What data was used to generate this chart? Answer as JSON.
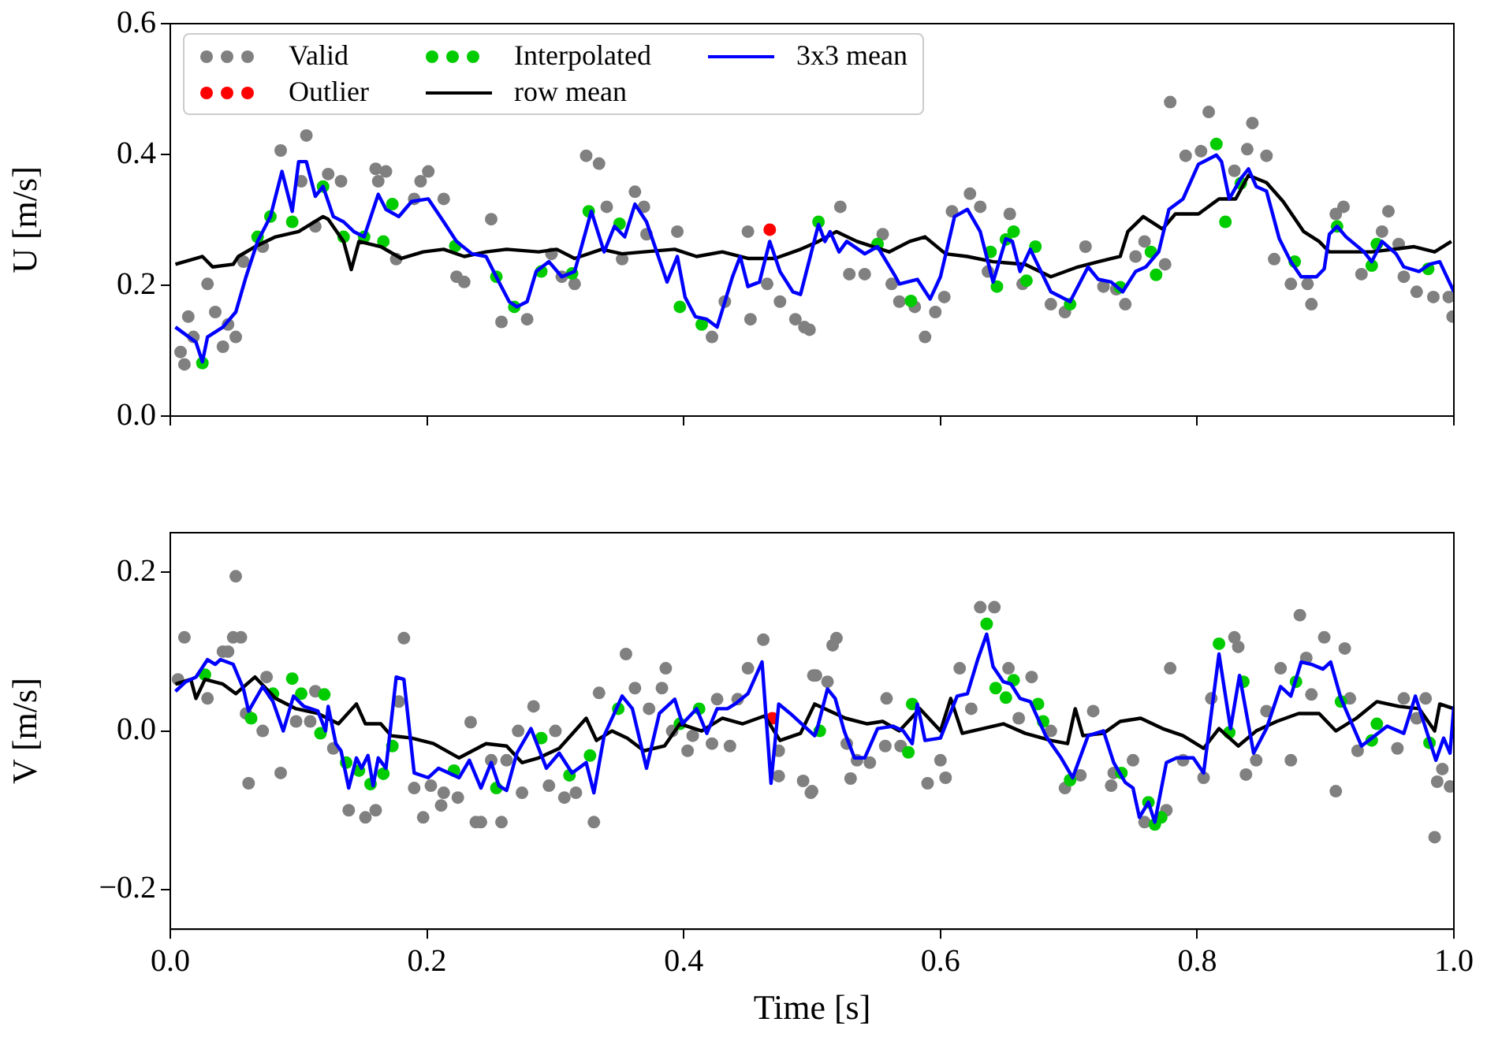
{
  "chart_data": [
    {
      "type": "line",
      "ylabel": "U [m/s]",
      "xlim": [
        0,
        1
      ],
      "xticks": [
        {
          "value": 0,
          "label": null
        },
        {
          "value": 0.2,
          "label": null
        },
        {
          "value": 0.4,
          "label": null
        },
        {
          "value": 0.6,
          "label": null
        },
        {
          "value": 0.8,
          "label": null
        },
        {
          "value": 1,
          "label": null
        }
      ],
      "ylim": [
        0,
        0.6
      ],
      "yticks": [
        {
          "value": 0,
          "label": "0.0"
        },
        {
          "value": 0.2,
          "label": "0.2"
        },
        {
          "value": 0.4,
          "label": "0.4"
        },
        {
          "value": 0.6,
          "label": "0.6"
        }
      ],
      "tick_labels": "y",
      "legend": "top left",
      "series": [
        {
          "name": "Valid",
          "type": "scatter",
          "marker": "circle",
          "color": "#808080",
          "x": [
            0.008,
            0.011,
            0.014,
            0.018,
            0.029,
            0.035,
            0.041,
            0.045,
            0.051,
            0.057,
            0.072,
            0.086,
            0.102,
            0.106,
            0.113,
            0.123,
            0.133,
            0.16,
            0.162,
            0.168,
            0.176,
            0.19,
            0.195,
            0.201,
            0.213,
            0.223,
            0.229,
            0.25,
            0.258,
            0.278,
            0.297,
            0.305,
            0.315,
            0.324,
            0.334,
            0.34,
            0.352,
            0.362,
            0.369,
            0.371,
            0.395,
            0.422,
            0.432,
            0.45,
            0.452,
            0.465,
            0.475,
            0.487,
            0.494,
            0.498,
            0.522,
            0.529,
            0.541,
            0.555,
            0.562,
            0.568,
            0.58,
            0.588,
            0.596,
            0.603,
            0.609,
            0.623,
            0.631,
            0.637,
            0.654,
            0.664,
            0.686,
            0.697,
            0.713,
            0.727,
            0.737,
            0.744,
            0.752,
            0.759,
            0.775,
            0.779,
            0.791,
            0.803,
            0.809,
            0.829,
            0.839,
            0.843,
            0.854,
            0.86,
            0.873,
            0.886,
            0.889,
            0.908,
            0.914,
            0.928,
            0.944,
            0.949,
            0.957,
            0.961,
            0.971,
            0.984,
            0.996,
            0.999
          ],
          "values": [
            0.098,
            0.079,
            0.152,
            0.121,
            0.202,
            0.159,
            0.106,
            0.14,
            0.121,
            0.236,
            0.259,
            0.406,
            0.359,
            0.429,
            0.29,
            0.37,
            0.359,
            0.378,
            0.359,
            0.374,
            0.24,
            0.332,
            0.359,
            0.374,
            0.332,
            0.213,
            0.205,
            0.301,
            0.144,
            0.148,
            0.248,
            0.213,
            0.202,
            0.398,
            0.386,
            0.32,
            0.24,
            0.343,
            0.32,
            0.278,
            0.282,
            0.121,
            0.175,
            0.282,
            0.148,
            0.202,
            0.175,
            0.148,
            0.136,
            0.132,
            0.32,
            0.217,
            0.217,
            0.278,
            0.202,
            0.175,
            0.167,
            0.121,
            0.159,
            0.182,
            0.313,
            0.34,
            0.32,
            0.221,
            0.309,
            0.202,
            0.171,
            0.159,
            0.259,
            0.198,
            0.194,
            0.171,
            0.244,
            0.267,
            0.232,
            0.48,
            0.398,
            0.405,
            0.465,
            0.375,
            0.408,
            0.448,
            0.398,
            0.24,
            0.202,
            0.202,
            0.171,
            0.309,
            0.32,
            0.217,
            0.282,
            0.313,
            0.263,
            0.213,
            0.19,
            0.182,
            0.182,
            0.152
          ]
        },
        {
          "name": "Outlier",
          "type": "scatter",
          "marker": "circle",
          "color": "#ff0000",
          "x": [
            0.467
          ],
          "values": [
            0.285
          ]
        },
        {
          "name": "Interpolated",
          "type": "scatter",
          "marker": "circle",
          "color": "#00cc00",
          "x": [
            0.025,
            0.068,
            0.078,
            0.095,
            0.119,
            0.135,
            0.151,
            0.166,
            0.173,
            0.222,
            0.254,
            0.268,
            0.289,
            0.313,
            0.326,
            0.35,
            0.397,
            0.414,
            0.505,
            0.551,
            0.577,
            0.639,
            0.644,
            0.651,
            0.657,
            0.667,
            0.674,
            0.701,
            0.74,
            0.764,
            0.768,
            0.815,
            0.822,
            0.834,
            0.876,
            0.909,
            0.936,
            0.94,
            0.98
          ],
          "values": [
            0.081,
            0.274,
            0.305,
            0.297,
            0.351,
            0.274,
            0.274,
            0.267,
            0.324,
            0.26,
            0.213,
            0.167,
            0.221,
            0.218,
            0.313,
            0.294,
            0.167,
            0.14,
            0.297,
            0.263,
            0.176,
            0.251,
            0.198,
            0.27,
            0.282,
            0.207,
            0.259,
            0.171,
            0.197,
            0.251,
            0.216,
            0.416,
            0.297,
            0.356,
            0.236,
            0.29,
            0.23,
            0.263,
            0.225
          ]
        },
        {
          "name": "row mean",
          "type": "line",
          "marker": "none",
          "line_style": "solid",
          "color": "#000000",
          "x": [
            0.004,
            0.025,
            0.033,
            0.049,
            0.053,
            0.066,
            0.082,
            0.1,
            0.119,
            0.123,
            0.135,
            0.141,
            0.147,
            0.164,
            0.18,
            0.197,
            0.213,
            0.229,
            0.246,
            0.262,
            0.287,
            0.301,
            0.315,
            0.336,
            0.352,
            0.369,
            0.393,
            0.41,
            0.43,
            0.45,
            0.471,
            0.491,
            0.505,
            0.519,
            0.535,
            0.56,
            0.576,
            0.588,
            0.604,
            0.621,
            0.641,
            0.666,
            0.686,
            0.707,
            0.723,
            0.74,
            0.746,
            0.758,
            0.773,
            0.783,
            0.801,
            0.817,
            0.83,
            0.84,
            0.854,
            0.867,
            0.883,
            0.895,
            0.903,
            0.92,
            0.936,
            0.953,
            0.969,
            0.985,
            0.998
          ],
          "values": [
            0.232,
            0.244,
            0.228,
            0.232,
            0.244,
            0.259,
            0.274,
            0.282,
            0.305,
            0.301,
            0.267,
            0.224,
            0.267,
            0.259,
            0.241,
            0.251,
            0.255,
            0.244,
            0.251,
            0.255,
            0.251,
            0.255,
            0.241,
            0.255,
            0.248,
            0.251,
            0.255,
            0.244,
            0.251,
            0.241,
            0.241,
            0.255,
            0.267,
            0.282,
            0.267,
            0.251,
            0.267,
            0.274,
            0.248,
            0.244,
            0.236,
            0.232,
            0.213,
            0.228,
            0.236,
            0.244,
            0.282,
            0.305,
            0.286,
            0.309,
            0.309,
            0.332,
            0.332,
            0.368,
            0.357,
            0.328,
            0.282,
            0.267,
            0.251,
            0.251,
            0.251,
            0.255,
            0.259,
            0.251,
            0.267
          ]
        },
        {
          "name": "3x3 mean",
          "type": "line",
          "marker": "none",
          "line_style": "solid",
          "color": "#0000ff",
          "x": [
            0.004,
            0.02,
            0.025,
            0.029,
            0.041,
            0.051,
            0.059,
            0.068,
            0.078,
            0.087,
            0.095,
            0.1,
            0.106,
            0.113,
            0.119,
            0.127,
            0.135,
            0.143,
            0.151,
            0.162,
            0.168,
            0.178,
            0.188,
            0.201,
            0.213,
            0.223,
            0.235,
            0.246,
            0.256,
            0.264,
            0.27,
            0.278,
            0.285,
            0.295,
            0.305,
            0.315,
            0.328,
            0.338,
            0.346,
            0.354,
            0.362,
            0.371,
            0.379,
            0.387,
            0.395,
            0.401,
            0.409,
            0.418,
            0.426,
            0.438,
            0.444,
            0.45,
            0.459,
            0.467,
            0.475,
            0.485,
            0.491,
            0.505,
            0.51,
            0.514,
            0.521,
            0.527,
            0.541,
            0.551,
            0.565,
            0.568,
            0.582,
            0.592,
            0.6,
            0.611,
            0.621,
            0.631,
            0.641,
            0.651,
            0.656,
            0.662,
            0.67,
            0.686,
            0.701,
            0.715,
            0.723,
            0.733,
            0.742,
            0.752,
            0.76,
            0.77,
            0.778,
            0.789,
            0.801,
            0.815,
            0.819,
            0.825,
            0.834,
            0.84,
            0.846,
            0.854,
            0.864,
            0.873,
            0.881,
            0.893,
            0.899,
            0.903,
            0.909,
            0.916,
            0.93,
            0.936,
            0.944,
            0.955,
            0.961,
            0.973,
            0.981,
            0.989,
            1.0
          ],
          "values": [
            0.136,
            0.113,
            0.083,
            0.121,
            0.136,
            0.159,
            0.213,
            0.267,
            0.305,
            0.374,
            0.313,
            0.389,
            0.389,
            0.336,
            0.351,
            0.305,
            0.297,
            0.282,
            0.274,
            0.339,
            0.316,
            0.305,
            0.328,
            0.332,
            0.297,
            0.267,
            0.248,
            0.244,
            0.205,
            0.175,
            0.167,
            0.175,
            0.221,
            0.236,
            0.213,
            0.221,
            0.313,
            0.251,
            0.29,
            0.274,
            0.324,
            0.297,
            0.251,
            0.205,
            0.244,
            0.182,
            0.152,
            0.148,
            0.136,
            0.213,
            0.244,
            0.198,
            0.205,
            0.267,
            0.221,
            0.19,
            0.186,
            0.293,
            0.267,
            0.282,
            0.251,
            0.267,
            0.248,
            0.259,
            0.213,
            0.202,
            0.209,
            0.179,
            0.213,
            0.305,
            0.316,
            0.282,
            0.205,
            0.271,
            0.267,
            0.221,
            0.255,
            0.19,
            0.175,
            0.228,
            0.209,
            0.205,
            0.19,
            0.221,
            0.228,
            0.251,
            0.316,
            0.332,
            0.385,
            0.399,
            0.389,
            0.332,
            0.363,
            0.378,
            0.351,
            0.344,
            0.271,
            0.236,
            0.213,
            0.213,
            0.225,
            0.278,
            0.29,
            0.274,
            0.251,
            0.236,
            0.267,
            0.248,
            0.228,
            0.221,
            0.232,
            0.236,
            0.19
          ]
        }
      ]
    },
    {
      "type": "line",
      "xlabel": "Time [s]",
      "ylabel": "V [m/s]",
      "xlim": [
        0,
        1
      ],
      "xticks": [
        {
          "value": 0,
          "label": "0.0"
        },
        {
          "value": 0.2,
          "label": "0.2"
        },
        {
          "value": 0.4,
          "label": "0.4"
        },
        {
          "value": 0.6,
          "label": "0.6"
        },
        {
          "value": 0.8,
          "label": "0.8"
        },
        {
          "value": 1,
          "label": "1.0"
        }
      ],
      "ylim": [
        -0.25,
        0.25
      ],
      "yticks": [
        {
          "value": -0.2,
          "label": "−0.2"
        },
        {
          "value": 0,
          "label": "0.0"
        },
        {
          "value": 0.2,
          "label": "0.2"
        }
      ],
      "series": [
        {
          "type": "scatter",
          "marker": "circle",
          "color": "#808080",
          "x": [
            0.006,
            0.011,
            0.029,
            0.041,
            0.045,
            0.049,
            0.051,
            0.055,
            0.059,
            0.061,
            0.072,
            0.075,
            0.086,
            0.098,
            0.109,
            0.113,
            0.127,
            0.139,
            0.152,
            0.16,
            0.178,
            0.182,
            0.19,
            0.197,
            0.203,
            0.211,
            0.213,
            0.224,
            0.234,
            0.238,
            0.242,
            0.25,
            0.258,
            0.262,
            0.271,
            0.274,
            0.283,
            0.295,
            0.3,
            0.307,
            0.316,
            0.33,
            0.334,
            0.355,
            0.362,
            0.373,
            0.383,
            0.386,
            0.391,
            0.403,
            0.407,
            0.422,
            0.426,
            0.436,
            0.442,
            0.45,
            0.462,
            0.474,
            0.474,
            0.493,
            0.499,
            0.5,
            0.501,
            0.503,
            0.512,
            0.516,
            0.519,
            0.527,
            0.53,
            0.535,
            0.545,
            0.557,
            0.558,
            0.569,
            0.59,
            0.6,
            0.604,
            0.615,
            0.624,
            0.631,
            0.642,
            0.653,
            0.661,
            0.671,
            0.686,
            0.697,
            0.709,
            0.719,
            0.733,
            0.735,
            0.75,
            0.759,
            0.776,
            0.779,
            0.789,
            0.805,
            0.811,
            0.829,
            0.832,
            0.838,
            0.846,
            0.854,
            0.865,
            0.873,
            0.88,
            0.885,
            0.889,
            0.899,
            0.908,
            0.915,
            0.919,
            0.925,
            0.956,
            0.961,
            0.971,
            0.978,
            0.985,
            0.987,
            0.991,
            0.997
          ],
          "values": [
            0.065,
            0.118,
            0.041,
            0.1,
            0.1,
            0.118,
            0.195,
            0.118,
            0.022,
            -0.066,
            0,
            0.068,
            -0.053,
            0.012,
            0.012,
            0.05,
            -0.022,
            -0.1,
            -0.109,
            -0.1,
            0.037,
            0.117,
            -0.072,
            -0.109,
            -0.069,
            -0.094,
            -0.078,
            -0.084,
            0.011,
            -0.115,
            -0.115,
            -0.037,
            -0.115,
            -0.037,
            0,
            -0.078,
            0.031,
            -0.069,
            0,
            -0.084,
            -0.078,
            -0.115,
            0.048,
            0.097,
            0.054,
            0.028,
            0.054,
            0.079,
            0,
            -0.025,
            -0.006,
            -0.016,
            0.04,
            -0.019,
            0.04,
            0.079,
            0.115,
            -0.057,
            -0.025,
            -0.063,
            -0.078,
            -0.076,
            0.07,
            0.07,
            0.062,
            0.108,
            0.117,
            -0.016,
            -0.06,
            -0.037,
            -0.04,
            -0.019,
            0.041,
            -0.019,
            -0.066,
            -0.037,
            -0.059,
            0.079,
            0.028,
            0.156,
            0.156,
            0.079,
            0.016,
            0.068,
            0,
            -0.072,
            -0.056,
            0.025,
            -0.069,
            -0.053,
            -0.037,
            -0.115,
            -0.1,
            0.079,
            -0.037,
            -0.059,
            0.041,
            0.118,
            0.106,
            -0.055,
            -0.037,
            0.025,
            0.079,
            -0.037,
            0.146,
            0.092,
            0.046,
            0.118,
            -0.076,
            0.104,
            0.041,
            -0.025,
            -0.022,
            0.041,
            0.016,
            0.041,
            -0.134,
            -0.064,
            -0.048,
            -0.07
          ]
        },
        {
          "type": "scatter",
          "marker": "circle",
          "color": "#ff0000",
          "x": [
            0.469
          ],
          "values": [
            0.016
          ]
        },
        {
          "type": "scatter",
          "marker": "circle",
          "color": "#00cc00",
          "x": [
            0.027,
            0.063,
            0.08,
            0.095,
            0.102,
            0.117,
            0.12,
            0.137,
            0.147,
            0.156,
            0.166,
            0.173,
            0.221,
            0.254,
            0.289,
            0.311,
            0.327,
            0.349,
            0.397,
            0.412,
            0.506,
            0.575,
            0.578,
            0.636,
            0.643,
            0.651,
            0.657,
            0.676,
            0.68,
            0.701,
            0.741,
            0.762,
            0.767,
            0.772,
            0.817,
            0.825,
            0.836,
            0.877,
            0.912,
            0.936,
            0.94,
            0.981
          ],
          "values": [
            0.071,
            0.016,
            0.047,
            0.066,
            0.047,
            -0.003,
            0.046,
            -0.04,
            -0.05,
            -0.067,
            -0.054,
            -0.019,
            -0.05,
            -0.072,
            -0.009,
            -0.056,
            -0.031,
            0.028,
            0.009,
            0.028,
            0,
            -0.027,
            0.034,
            0.135,
            0.054,
            0.042,
            0.064,
            0.034,
            0.012,
            -0.062,
            -0.053,
            -0.09,
            -0.118,
            -0.109,
            0.11,
            -0.002,
            0.062,
            0.062,
            0.037,
            -0.012,
            0.009,
            -0.015
          ]
        },
        {
          "type": "line",
          "marker": "none",
          "line_style": "solid",
          "color": "#000000",
          "x": [
            0.004,
            0.016,
            0.02,
            0.027,
            0.041,
            0.051,
            0.066,
            0.082,
            0.098,
            0.115,
            0.131,
            0.145,
            0.152,
            0.164,
            0.172,
            0.188,
            0.205,
            0.225,
            0.246,
            0.262,
            0.274,
            0.287,
            0.303,
            0.324,
            0.332,
            0.344,
            0.356,
            0.369,
            0.385,
            0.397,
            0.414,
            0.43,
            0.446,
            0.463,
            0.475,
            0.491,
            0.502,
            0.51,
            0.526,
            0.543,
            0.555,
            0.568,
            0.584,
            0.6,
            0.608,
            0.617,
            0.633,
            0.649,
            0.666,
            0.686,
            0.699,
            0.705,
            0.711,
            0.727,
            0.74,
            0.756,
            0.773,
            0.789,
            0.805,
            0.817,
            0.832,
            0.846,
            0.862,
            0.879,
            0.895,
            0.908,
            0.924,
            0.94,
            0.957,
            0.973,
            0.985,
            0.989,
            1.0
          ],
          "values": [
            0.059,
            0.065,
            0.041,
            0.065,
            0.059,
            0.047,
            0.068,
            0.041,
            0.028,
            0.022,
            0.009,
            0.034,
            0.009,
            0.009,
            -0.006,
            -0.009,
            -0.016,
            -0.034,
            -0.016,
            -0.019,
            -0.04,
            -0.034,
            -0.022,
            0.016,
            -0.012,
            0,
            -0.009,
            -0.025,
            -0.019,
            0.009,
            0,
            0.016,
            0.009,
            0.019,
            -0.012,
            -0.003,
            0.034,
            0.028,
            0.016,
            0.009,
            0.012,
            0,
            0.028,
            0,
            0.041,
            -0.003,
            0.003,
            0.009,
            -0.003,
            -0.012,
            -0.016,
            0.028,
            -0.006,
            -0.003,
            0.012,
            0.016,
            0.003,
            -0.006,
            -0.022,
            0.003,
            -0.019,
            0,
            0.012,
            0.022,
            0.022,
            0,
            0.016,
            0.037,
            0.031,
            0.028,
            0,
            0.034,
            0.028
          ]
        },
        {
          "type": "line",
          "marker": "none",
          "line_style": "solid",
          "color": "#0000ff",
          "x": [
            0.004,
            0.012,
            0.02,
            0.029,
            0.035,
            0.039,
            0.049,
            0.057,
            0.061,
            0.072,
            0.08,
            0.088,
            0.096,
            0.104,
            0.115,
            0.121,
            0.123,
            0.129,
            0.133,
            0.139,
            0.145,
            0.149,
            0.154,
            0.158,
            0.162,
            0.168,
            0.176,
            0.182,
            0.19,
            0.201,
            0.209,
            0.217,
            0.225,
            0.233,
            0.242,
            0.25,
            0.256,
            0.262,
            0.27,
            0.281,
            0.287,
            0.293,
            0.303,
            0.313,
            0.324,
            0.33,
            0.338,
            0.352,
            0.36,
            0.371,
            0.381,
            0.393,
            0.399,
            0.41,
            0.418,
            0.426,
            0.434,
            0.44,
            0.45,
            0.461,
            0.468,
            0.474,
            0.483,
            0.502,
            0.504,
            0.512,
            0.518,
            0.525,
            0.533,
            0.541,
            0.551,
            0.563,
            0.571,
            0.578,
            0.582,
            0.588,
            0.6,
            0.613,
            0.621,
            0.629,
            0.636,
            0.641,
            0.649,
            0.655,
            0.662,
            0.67,
            0.682,
            0.694,
            0.703,
            0.715,
            0.727,
            0.735,
            0.744,
            0.75,
            0.755,
            0.762,
            0.767,
            0.776,
            0.784,
            0.797,
            0.805,
            0.817,
            0.826,
            0.833,
            0.844,
            0.854,
            0.865,
            0.873,
            0.881,
            0.889,
            0.898,
            0.904,
            0.912,
            0.928,
            0.936,
            0.948,
            0.961,
            0.97,
            0.986,
            0.992,
            0.997,
            1.0
          ],
          "values": [
            0.05,
            0.062,
            0.068,
            0.09,
            0.084,
            0.09,
            0.084,
            0.053,
            0.025,
            0.056,
            0.037,
            0,
            0.044,
            0.031,
            0.025,
            0,
            0.031,
            -0.016,
            -0.025,
            -0.072,
            -0.034,
            -0.047,
            -0.031,
            -0.069,
            -0.034,
            -0.047,
            0.068,
            0.065,
            -0.053,
            -0.059,
            -0.047,
            -0.053,
            -0.059,
            -0.037,
            -0.072,
            -0.04,
            -0.069,
            -0.075,
            -0.028,
            0.003,
            -0.022,
            -0.047,
            -0.028,
            -0.053,
            -0.04,
            -0.078,
            -0.006,
            0.044,
            0.028,
            -0.047,
            0.022,
            0.04,
            0.009,
            0.028,
            -0.003,
            0.028,
            0.028,
            0.034,
            0.047,
            0.087,
            -0.066,
            0.034,
            0.022,
            -0.006,
            0.003,
            0.053,
            0.041,
            0,
            -0.034,
            -0.034,
            0.003,
            0.006,
            0,
            -0.016,
            0.034,
            -0.012,
            -0.009,
            0.044,
            0.047,
            0.09,
            0.122,
            0.081,
            0.062,
            0.059,
            0.041,
            0.037,
            -0.006,
            -0.034,
            -0.059,
            -0.006,
            0,
            -0.04,
            -0.065,
            -0.072,
            -0.109,
            -0.09,
            -0.115,
            -0.04,
            -0.034,
            -0.034,
            -0.053,
            0.097,
            0.003,
            0.07,
            -0.028,
            0.003,
            0.056,
            0.044,
            0.087,
            0.084,
            0.078,
            0.087,
            0.041,
            -0.019,
            -0.009,
            0.006,
            -0.003,
            0.044,
            -0.037,
            -0.009,
            -0.028,
            0.031
          ]
        }
      ]
    }
  ]
}
